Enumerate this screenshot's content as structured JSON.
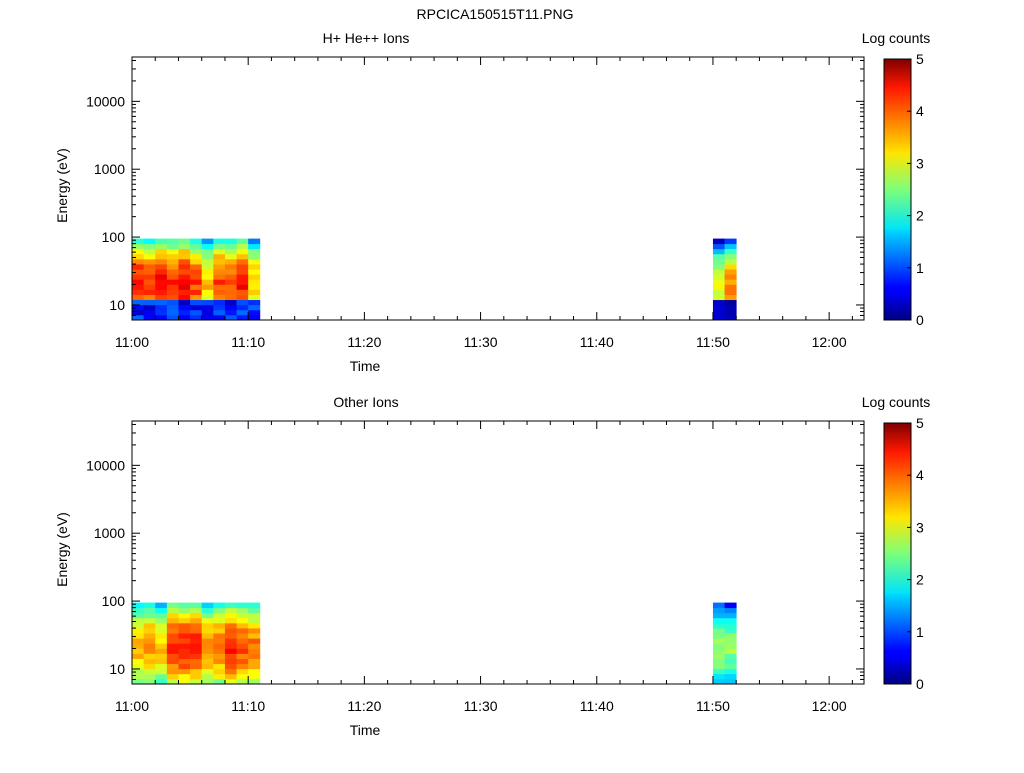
{
  "figure_title": "RPCICA150515T11.PNG",
  "chart_data": [
    {
      "type": "heatmap",
      "title": "H+ He++ Ions",
      "xlabel": "Time",
      "ylabel": "Energy (eV)",
      "y_scale": "log",
      "ylim": [
        6,
        45000
      ],
      "xlim": [
        "11:00",
        "12:03"
      ],
      "x_ticks": [
        "11:00",
        "11:10",
        "11:20",
        "11:30",
        "11:40",
        "11:50",
        "12:00"
      ],
      "y_ticks": [
        "10",
        "100",
        "1000",
        "10000"
      ],
      "colorbar": {
        "label": "Log counts",
        "min": 0,
        "max": 5,
        "ticks": [
          "0",
          "1",
          "2",
          "3",
          "4",
          "5"
        ]
      },
      "data_blocks": [
        {
          "t_start": "11:00",
          "t_end": "11:11",
          "e_min": 6,
          "e_max": 95,
          "low_energy_band": [
            6,
            12
          ],
          "upper_log_counts": [
            1.6,
            3.9
          ],
          "low_band_log_counts": [
            0.3,
            1.2
          ]
        },
        {
          "t_start": "11:50",
          "t_end": "11:52",
          "e_min": 6,
          "e_max": 95,
          "low_energy_band": [
            6,
            12
          ],
          "upper_log_counts": [
            0.4,
            3.5
          ],
          "low_band_log_counts": [
            0.1,
            0.5
          ]
        }
      ]
    },
    {
      "type": "heatmap",
      "title": "Other Ions",
      "xlabel": "Time",
      "ylabel": "Energy (eV)",
      "y_scale": "log",
      "ylim": [
        6,
        45000
      ],
      "xlim": [
        "11:00",
        "12:03"
      ],
      "x_ticks": [
        "11:00",
        "11:10",
        "11:20",
        "11:30",
        "11:40",
        "11:50",
        "12:00"
      ],
      "y_ticks": [
        "10",
        "100",
        "1000",
        "10000"
      ],
      "colorbar": {
        "label": "Log counts",
        "min": 0,
        "max": 5,
        "ticks": [
          "0",
          "1",
          "2",
          "3",
          "4",
          "5"
        ]
      },
      "data_blocks": [
        {
          "t_start": "11:00",
          "t_end": "11:11",
          "e_min": 6,
          "e_max": 95,
          "upper_log_counts": [
            1.8,
            3.9
          ]
        },
        {
          "t_start": "11:50",
          "t_end": "11:52",
          "e_min": 6,
          "e_max": 95,
          "upper_log_counts": [
            0.8,
            2.8
          ]
        }
      ]
    }
  ]
}
